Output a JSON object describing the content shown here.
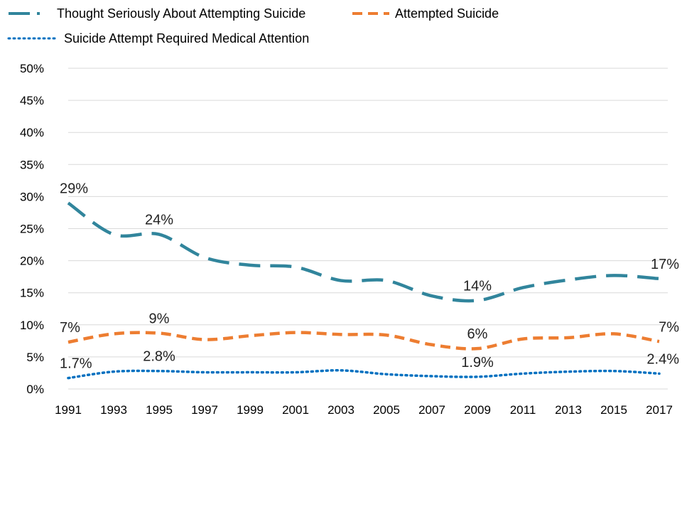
{
  "chart_data": {
    "type": "line",
    "title": "",
    "xlabel": "",
    "ylabel": "",
    "x": [
      "1991",
      "1993",
      "1995",
      "1997",
      "1999",
      "2001",
      "2003",
      "2005",
      "2007",
      "2009",
      "2011",
      "2013",
      "2015",
      "2017"
    ],
    "ylim": [
      0,
      50
    ],
    "yticks": [
      0,
      5,
      10,
      15,
      20,
      25,
      30,
      35,
      40,
      45,
      50
    ],
    "y_tick_labels": [
      "0%",
      "5%",
      "10%",
      "15%",
      "20%",
      "25%",
      "30%",
      "35%",
      "40%",
      "45%",
      "50%"
    ],
    "grid": true,
    "legend_position": "top-left",
    "series": [
      {
        "name": "Thought Seriously About Attempting Suicide",
        "color": "#31859c",
        "dash": "long-dash",
        "values": [
          29.0,
          24.1,
          24.1,
          20.5,
          19.3,
          19.0,
          16.9,
          16.9,
          14.5,
          13.8,
          15.8,
          17.0,
          17.7,
          17.2
        ],
        "labels": [
          {
            "index": 0,
            "text": "29%"
          },
          {
            "index": 2,
            "text": "24%"
          },
          {
            "index": 9,
            "text": "14%"
          },
          {
            "index": 13,
            "text": "17%"
          }
        ]
      },
      {
        "name": "Attempted Suicide",
        "color": "#ed7d31",
        "dash": "short-dash",
        "values": [
          7.3,
          8.6,
          8.7,
          7.7,
          8.3,
          8.8,
          8.5,
          8.4,
          6.9,
          6.3,
          7.8,
          8.0,
          8.6,
          7.4
        ],
        "labels": [
          {
            "index": 0,
            "text": "7%"
          },
          {
            "index": 2,
            "text": "9%"
          },
          {
            "index": 9,
            "text": "6%"
          },
          {
            "index": 13,
            "text": "7%"
          }
        ]
      },
      {
        "name": "Suicide Attempt Required Medical Attention",
        "color": "#0070c0",
        "dash": "dotted",
        "values": [
          1.7,
          2.7,
          2.8,
          2.6,
          2.6,
          2.6,
          2.9,
          2.3,
          2.0,
          1.9,
          2.4,
          2.7,
          2.8,
          2.4
        ],
        "labels": [
          {
            "index": 0,
            "text": "1.7%"
          },
          {
            "index": 2,
            "text": "2.8%"
          },
          {
            "index": 9,
            "text": "1.9%"
          },
          {
            "index": 13,
            "text": "2.4%"
          }
        ]
      }
    ]
  }
}
